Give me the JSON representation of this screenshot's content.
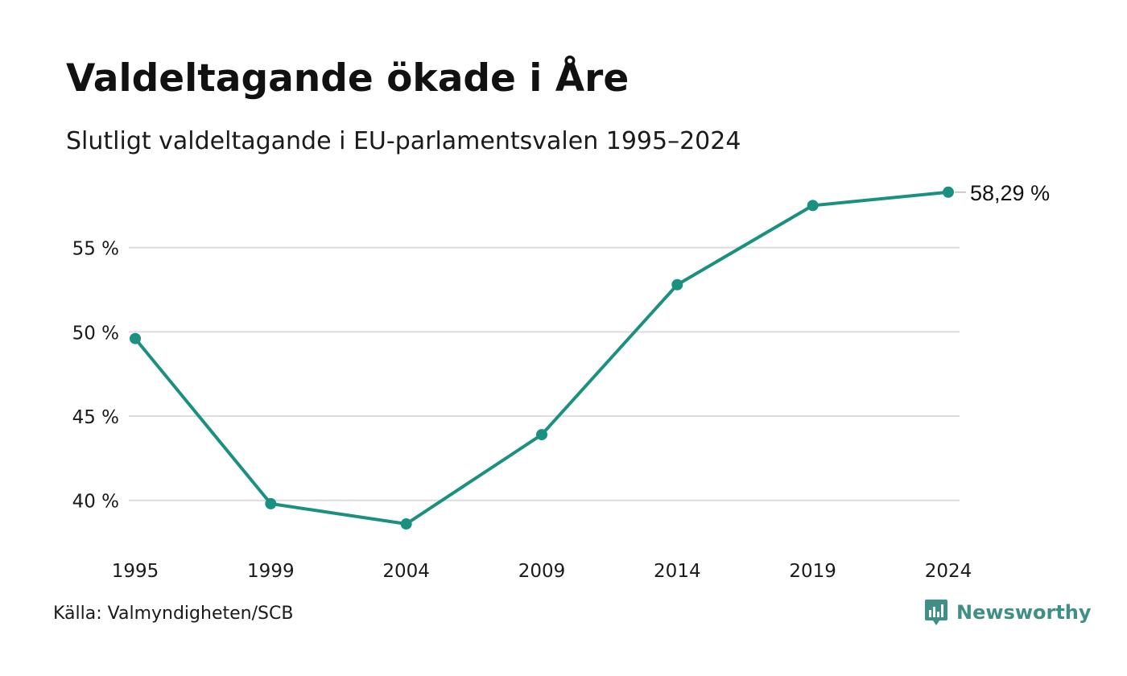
{
  "header": {
    "title": "Valdeltagande ökade i Åre",
    "subtitle": "Slutligt valdeltagande i EU-parlamentsvalen 1995–2024"
  },
  "footer": {
    "source": "Källa: Valmyndigheten/SCB",
    "brand": "Newsworthy",
    "brand_icon": "newsworthy-logo-icon"
  },
  "colors": {
    "line": "#1a9080",
    "grid": "#dcdcdc",
    "brand": "#3f8f86"
  },
  "chart_data": {
    "type": "line",
    "title": "Valdeltagande ökade i Åre",
    "subtitle": "Slutligt valdeltagande i EU-parlamentsvalen 1995–2024",
    "x": [
      "1995",
      "1999",
      "2004",
      "2009",
      "2014",
      "2019",
      "2024"
    ],
    "series": [
      {
        "values": [
          49.6,
          39.8,
          38.6,
          43.9,
          52.8,
          57.5,
          58.29
        ]
      }
    ],
    "end_label": "58,29 %",
    "yticks": [
      40,
      45,
      50,
      55
    ],
    "ytick_labels": [
      "40 %",
      "45 %",
      "50 %",
      "55 %"
    ],
    "ylim": [
      36.5,
      60
    ],
    "grid": true,
    "legend": "none"
  }
}
